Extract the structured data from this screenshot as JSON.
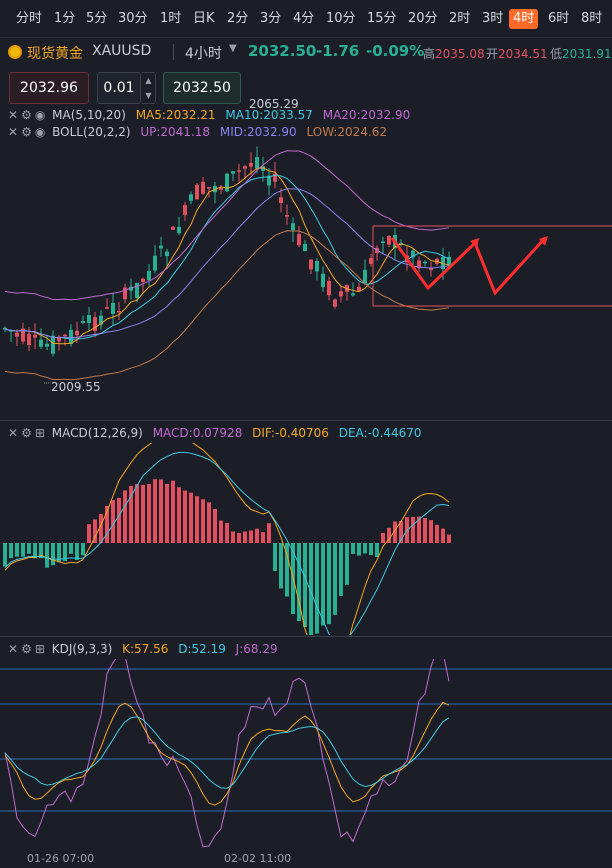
{
  "timeframes": [
    "分时",
    "1分",
    "5分",
    "30分",
    "1时",
    "日K",
    "2分",
    "3分",
    "4分",
    "10分",
    "15分",
    "20分",
    "2时",
    "3时",
    "4时",
    "6时",
    "8时"
  ],
  "active_timeframe": "4时",
  "symbol": {
    "name": "现货黄金",
    "code": "XAUUSD",
    "period": "4小时",
    "price": "2032.50",
    "change": "-1.76",
    "change_pct": "-0.09%"
  },
  "ohlc": {
    "high_label": "高",
    "high": "2035.08",
    "open_label": "开",
    "open": "2034.51",
    "low_label": "低",
    "low": "2031.91"
  },
  "trade": {
    "sell_price": "2032.96",
    "quantity": "0.01",
    "buy_price": "2032.50",
    "stepper_up": "▲",
    "stepper_down": "▼"
  },
  "ma": {
    "name": "MA(5,10,20)",
    "ma5": "MA5:2032.21",
    "ma10": "MA10:2033.57",
    "ma20": "MA20:2032.90"
  },
  "boll": {
    "name": "BOLL(20,2,2)",
    "up": "UP:2041.18",
    "mid": "MID:2032.90",
    "low": "LOW:2024.62"
  },
  "main_chart": {
    "high_mark": "2065.29",
    "low_mark": "2009.55"
  },
  "macd": {
    "name": "MACD(12,26,9)",
    "macd": "MACD:0.07928",
    "dif": "DIF:-0.40706",
    "dea": "DEA:-0.44670"
  },
  "kdj": {
    "name": "KDJ(9,3,3)",
    "k": "K:57.56",
    "d": "D:52.19",
    "j": "J:68.29"
  },
  "x_labels": [
    "01-26 07:00",
    "02-02 11:00"
  ],
  "colors": {
    "up": "#e2505f",
    "down": "#27b092",
    "accent": "#ff6a2a",
    "ma5": "#f5a623",
    "ma10": "#3ec8e0",
    "ma20": "#c06ad0",
    "boll_mid": "#8a82f0",
    "boll_low": "#c27a4a"
  },
  "icons": {
    "close": "close-icon",
    "settings": "settings-icon",
    "visibility": "eye-icon",
    "add": "add-icon"
  }
}
